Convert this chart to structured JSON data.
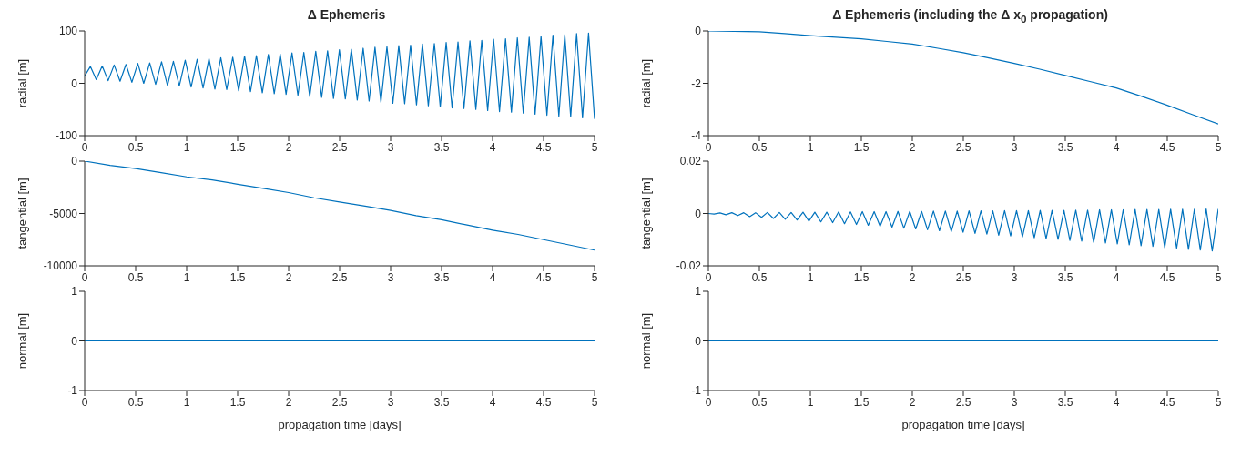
{
  "chart_data": [
    {
      "type": "line",
      "title": "Δ Ephemeris",
      "ylabel": "radial [m]",
      "color": "#0072bd",
      "xlim": [
        0,
        5
      ],
      "xticks": [
        0,
        0.5,
        1,
        1.5,
        2,
        2.5,
        3,
        3.5,
        4,
        4.5,
        5
      ],
      "ylim": [
        -100,
        100
      ],
      "yticks": [
        -100,
        0,
        100
      ],
      "x": [
        0,
        0.056,
        0.114,
        0.172,
        0.23,
        0.289,
        0.347,
        0.405,
        0.463,
        0.521,
        0.579,
        0.638,
        0.696,
        0.754,
        0.812,
        0.87,
        0.928,
        0.986,
        1.044,
        1.103,
        1.161,
        1.219,
        1.277,
        1.335,
        1.393,
        1.452,
        1.51,
        1.568,
        1.626,
        1.684,
        1.742,
        1.801,
        1.859,
        1.917,
        1.975,
        2.033,
        2.091,
        2.149,
        2.207,
        2.266,
        2.324,
        2.382,
        2.44,
        2.498,
        2.556,
        2.615,
        2.673,
        2.731,
        2.789,
        2.847,
        2.905,
        2.964,
        3.022,
        3.08,
        3.138,
        3.196,
        3.254,
        3.312,
        3.37,
        3.429,
        3.487,
        3.545,
        3.603,
        3.661,
        3.719,
        3.778,
        3.836,
        3.894,
        3.952,
        4.01,
        4.068,
        4.127,
        4.185,
        4.243,
        4.301,
        4.359,
        4.417,
        4.475,
        4.533,
        4.592,
        4.65,
        4.708,
        4.766,
        4.824,
        4.882,
        4.941,
        5
      ],
      "values": [
        14,
        32,
        7,
        33,
        5,
        35,
        4,
        36,
        2,
        38,
        0,
        39,
        -2,
        41,
        -4,
        42,
        -5,
        44,
        -7,
        46,
        -9,
        47,
        -11,
        49,
        -12,
        50,
        -14,
        52,
        -16,
        53,
        -18,
        55,
        -20,
        56,
        -21,
        58,
        -23,
        59,
        -25,
        61,
        -27,
        62,
        -29,
        64,
        -30,
        65,
        -32,
        67,
        -34,
        69,
        -36,
        70,
        -38,
        72,
        -39,
        73,
        -41,
        75,
        -43,
        76,
        -45,
        78,
        -47,
        79,
        -48,
        81,
        -50,
        82,
        -52,
        84,
        -54,
        85,
        -55,
        87,
        -57,
        88,
        -59,
        90,
        -61,
        92,
        -63,
        93,
        -64,
        95,
        -66,
        96,
        -68
      ]
    },
    {
      "type": "line",
      "title": "Δ Ephemeris (including the Δ x$_{0}$ propagation)",
      "ylabel": "radial [m]",
      "color": "#0072bd",
      "xlim": [
        0,
        5
      ],
      "xticks": [
        0,
        0.5,
        1,
        1.5,
        2,
        2.5,
        3,
        3.5,
        4,
        4.5,
        5
      ],
      "ylim": [
        -4,
        0
      ],
      "yticks": [
        -4,
        -2,
        0
      ],
      "x": [
        0,
        0.25,
        0.5,
        0.75,
        1,
        1.25,
        1.5,
        1.75,
        2,
        2.25,
        2.5,
        2.75,
        3,
        3.25,
        3.5,
        3.75,
        4,
        4.25,
        4.5,
        4.75,
        5
      ],
      "values": [
        0,
        -0.01,
        -0.03,
        -0.1,
        -0.18,
        -0.24,
        -0.3,
        -0.4,
        -0.5,
        -0.66,
        -0.83,
        -1.03,
        -1.24,
        -1.46,
        -1.7,
        -1.94,
        -2.18,
        -2.5,
        -2.84,
        -3.2,
        -3.55
      ]
    },
    {
      "type": "line",
      "ylabel": "tangential [m]",
      "color": "#0072bd",
      "xlim": [
        0,
        5
      ],
      "xticks": [
        0,
        0.5,
        1,
        1.5,
        2,
        2.5,
        3,
        3.5,
        4,
        4.5,
        5
      ],
      "ylim": [
        -10000,
        0
      ],
      "yticks": [
        -10000,
        -5000,
        0
      ],
      "x": [
        0,
        0.25,
        0.5,
        0.75,
        1,
        1.25,
        1.5,
        1.75,
        2,
        2.25,
        2.5,
        2.75,
        3,
        3.25,
        3.5,
        3.75,
        4,
        4.25,
        4.5,
        4.75,
        5
      ],
      "values": [
        0,
        -400,
        -700,
        -1100,
        -1500,
        -1800,
        -2200,
        -2600,
        -3000,
        -3500,
        -3900,
        -4300,
        -4700,
        -5200,
        -5600,
        -6100,
        -6600,
        -7000,
        -7500,
        -8000,
        -8500
      ]
    },
    {
      "type": "line",
      "ylabel": "tangential [m]",
      "color": "#0072bd",
      "xlim": [
        0,
        5
      ],
      "xticks": [
        0,
        0.5,
        1,
        1.5,
        2,
        2.5,
        3,
        3.5,
        4,
        4.5,
        5
      ],
      "ylim": [
        -0.02,
        0.02
      ],
      "yticks": [
        -0.02,
        0,
        0.02
      ],
      "x": [
        0,
        0.056,
        0.114,
        0.172,
        0.23,
        0.289,
        0.347,
        0.405,
        0.463,
        0.521,
        0.579,
        0.638,
        0.696,
        0.754,
        0.812,
        0.87,
        0.928,
        0.986,
        1.044,
        1.103,
        1.161,
        1.219,
        1.277,
        1.335,
        1.393,
        1.452,
        1.51,
        1.568,
        1.626,
        1.684,
        1.742,
        1.801,
        1.859,
        1.917,
        1.975,
        2.033,
        2.091,
        2.149,
        2.207,
        2.266,
        2.324,
        2.382,
        2.44,
        2.498,
        2.556,
        2.615,
        2.673,
        2.731,
        2.789,
        2.847,
        2.905,
        2.964,
        3.022,
        3.08,
        3.138,
        3.196,
        3.254,
        3.312,
        3.37,
        3.429,
        3.487,
        3.545,
        3.603,
        3.661,
        3.719,
        3.778,
        3.836,
        3.894,
        3.952,
        4.01,
        4.068,
        4.127,
        4.185,
        4.243,
        4.301,
        4.359,
        4.417,
        4.475,
        4.533,
        4.592,
        4.65,
        4.708,
        4.766,
        4.824,
        4.882,
        4.941,
        5
      ],
      "values": [
        0,
        -0.0002,
        0.0002,
        -0.0005,
        0.0003,
        -0.0008,
        0.0003,
        -0.0012,
        0.0003,
        -0.0015,
        0.0004,
        -0.0019,
        0.0004,
        -0.0022,
        0.0004,
        -0.0025,
        0.0005,
        -0.0029,
        0.0005,
        -0.0032,
        0.0005,
        -0.0035,
        0.0006,
        -0.0039,
        0.0006,
        -0.0042,
        0.0007,
        -0.0045,
        0.0007,
        -0.0049,
        0.0007,
        -0.0052,
        0.0008,
        -0.0056,
        0.0008,
        -0.0059,
        0.0008,
        -0.0062,
        0.0009,
        -0.0066,
        0.0009,
        -0.0069,
        0.0009,
        -0.0072,
        0.001,
        -0.0076,
        0.001,
        -0.0079,
        0.001,
        -0.0083,
        0.0011,
        -0.0086,
        0.0011,
        -0.0089,
        0.0011,
        -0.0093,
        0.0012,
        -0.0096,
        0.0012,
        -0.0099,
        0.0012,
        -0.0103,
        0.0013,
        -0.0106,
        0.0013,
        -0.011,
        0.0014,
        -0.0113,
        0.0014,
        -0.0116,
        0.0014,
        -0.012,
        0.0015,
        -0.0123,
        0.0015,
        -0.0126,
        0.0015,
        -0.013,
        0.0016,
        -0.0133,
        0.0016,
        -0.0137,
        0.0016,
        -0.014,
        0.0017,
        -0.0143,
        0.0017
      ]
    },
    {
      "type": "line",
      "ylabel": "normal [m]",
      "xlabel": "propagation time [days]",
      "color": "#0072bd",
      "xlim": [
        0,
        5
      ],
      "xticks": [
        0,
        0.5,
        1,
        1.5,
        2,
        2.5,
        3,
        3.5,
        4,
        4.5,
        5
      ],
      "ylim": [
        -1,
        1
      ],
      "yticks": [
        -1,
        0,
        1
      ],
      "x": [
        0,
        5
      ],
      "values": [
        0,
        0
      ]
    },
    {
      "type": "line",
      "ylabel": "normal [m]",
      "xlabel": "propagation time [days]",
      "color": "#0072bd",
      "xlim": [
        0,
        5
      ],
      "xticks": [
        0,
        0.5,
        1,
        1.5,
        2,
        2.5,
        3,
        3.5,
        4,
        4.5,
        5
      ],
      "ylim": [
        -1,
        1
      ],
      "yticks": [
        -1,
        0,
        1
      ],
      "x": [
        0,
        5
      ],
      "values": [
        0,
        0
      ]
    }
  ]
}
